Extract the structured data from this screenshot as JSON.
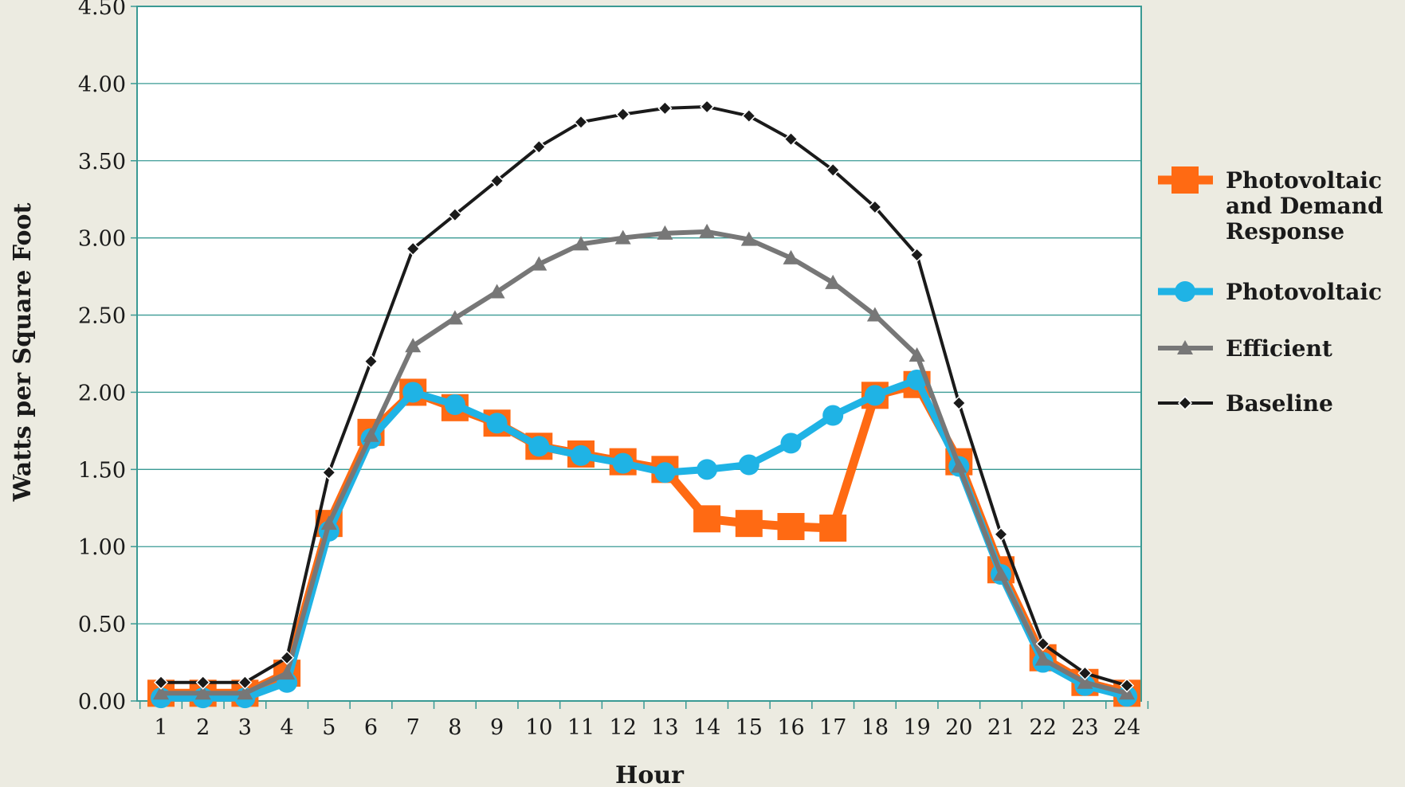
{
  "chart_data": {
    "type": "line",
    "title": "",
    "xlabel": "Hour",
    "ylabel": "Watts per Square Foot",
    "x": [
      "1",
      "2",
      "3",
      "4",
      "5",
      "6",
      "7",
      "8",
      "9",
      "10",
      "11",
      "12",
      "13",
      "14",
      "15",
      "16",
      "17",
      "18",
      "19",
      "20",
      "21",
      "22",
      "23",
      "24"
    ],
    "y_ticks": [
      "0.00",
      "0.50",
      "1.00",
      "1.50",
      "2.00",
      "2.50",
      "3.00",
      "3.50",
      "4.00",
      "4.50"
    ],
    "ylim": [
      0,
      4.5
    ],
    "grid": "horizontal",
    "legend_position": "right",
    "series": [
      {
        "name": "Photovoltaic and Demand Response",
        "legend_lines": [
          "Photovoltaic",
          "and Demand",
          "Response"
        ],
        "color": "#ff6a13",
        "marker": "square",
        "values": [
          0.05,
          0.05,
          0.05,
          0.18,
          1.15,
          1.74,
          2.0,
          1.9,
          1.8,
          1.65,
          1.6,
          1.55,
          1.5,
          1.18,
          1.15,
          1.13,
          1.12,
          1.98,
          2.05,
          1.55,
          0.85,
          0.28,
          0.12,
          0.05
        ]
      },
      {
        "name": "Photovoltaic",
        "legend_lines": [
          "Photovoltaic"
        ],
        "color": "#1fb3e5",
        "marker": "circle",
        "values": [
          0.02,
          0.02,
          0.02,
          0.12,
          1.1,
          1.7,
          2.0,
          1.92,
          1.8,
          1.65,
          1.59,
          1.54,
          1.48,
          1.5,
          1.53,
          1.67,
          1.85,
          1.98,
          2.08,
          1.52,
          0.82,
          0.25,
          0.1,
          0.03
        ]
      },
      {
        "name": "Efficient",
        "legend_lines": [
          "Efficient"
        ],
        "color": "#777777",
        "marker": "triangle",
        "values": [
          0.05,
          0.05,
          0.05,
          0.18,
          1.15,
          1.72,
          2.3,
          2.48,
          2.65,
          2.83,
          2.96,
          3.0,
          3.03,
          3.04,
          2.99,
          2.87,
          2.71,
          2.5,
          2.24,
          1.52,
          0.82,
          0.27,
          0.12,
          0.05
        ]
      },
      {
        "name": "Baseline",
        "legend_lines": [
          "Baseline"
        ],
        "color": "#1a1a1a",
        "marker": "diamond",
        "values": [
          0.12,
          0.12,
          0.12,
          0.28,
          1.48,
          2.2,
          2.93,
          3.15,
          3.37,
          3.59,
          3.75,
          3.8,
          3.84,
          3.85,
          3.79,
          3.64,
          3.44,
          3.2,
          2.89,
          1.93,
          1.08,
          0.37,
          0.18,
          0.1
        ]
      }
    ]
  }
}
